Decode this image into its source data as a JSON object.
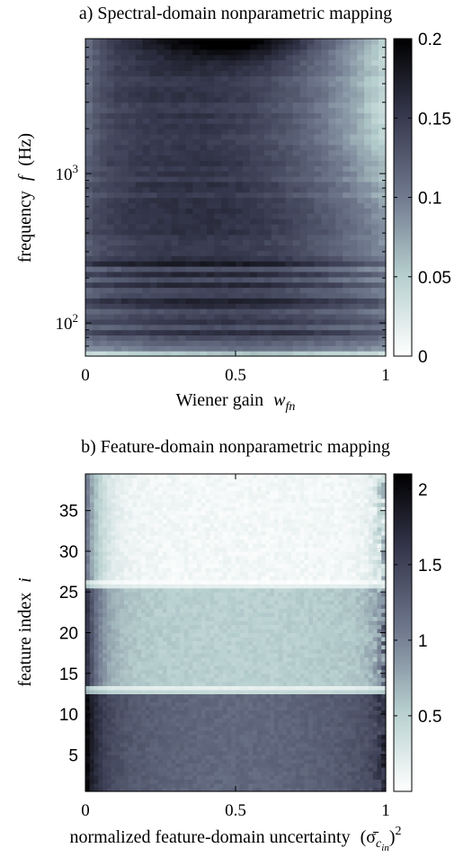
{
  "chart_data": [
    {
      "type": "heatmap",
      "title": "a) Spectral-domain nonparametric mapping",
      "xlabel": "Wiener gain",
      "xlabel_math": "w",
      "xlabel_sub": "fn",
      "ylabel": "frequency",
      "ylabel_math": "f",
      "ylabel_unit": "(Hz)",
      "xlim": [
        0,
        1
      ],
      "ylim": [
        60,
        8000
      ],
      "yscale": "log",
      "x_ticks": [
        {
          "value": 0,
          "label": "0"
        },
        {
          "value": 0.5,
          "label": "0.5"
        },
        {
          "value": 1,
          "label": "1"
        }
      ],
      "y_ticks": [
        {
          "value": 100,
          "base": "10",
          "exp": "2"
        },
        {
          "value": 1000,
          "base": "10",
          "exp": "3"
        }
      ],
      "colorbar": {
        "min": 0,
        "max": 0.2,
        "ticks": [
          {
            "value": 0,
            "label": "0"
          },
          {
            "value": 0.05,
            "label": "0.05"
          },
          {
            "value": 0.1,
            "label": "0.1"
          },
          {
            "value": 0.15,
            "label": "0.15"
          },
          {
            "value": 0.2,
            "label": "0.2"
          }
        ],
        "colormap": "gray-bone (white low, black high)"
      },
      "description": "Values mostly 0.10-0.18; near 0.19-0.20 at the top around x 0.25-0.75; lighter (0.03-0.08) toward x=1 in the upper half and near the bottom edge; light horizontal striping below ~300 Hz."
    },
    {
      "type": "heatmap",
      "title": "b) Feature-domain nonparametric mapping",
      "xlabel": "normalized feature-domain uncertainty",
      "xlabel_math": "(σ̄",
      "xlabel_sub": "c",
      "xlabel_subsub": "in",
      "xlabel_sup": "2",
      "ylabel": "feature index",
      "ylabel_math": "i",
      "xlim": [
        0,
        1
      ],
      "ylim": [
        0.5,
        39.5
      ],
      "x_ticks": [
        {
          "value": 0,
          "label": "0"
        },
        {
          "value": 0.5,
          "label": "0.5"
        },
        {
          "value": 1,
          "label": "1"
        }
      ],
      "y_ticks": [
        {
          "value": 5,
          "label": "5"
        },
        {
          "value": 10,
          "label": "10"
        },
        {
          "value": 15,
          "label": "15"
        },
        {
          "value": 20,
          "label": "20"
        },
        {
          "value": 25,
          "label": "25"
        },
        {
          "value": 30,
          "label": "30"
        },
        {
          "value": 35,
          "label": "35"
        }
      ],
      "colorbar": {
        "min": 0,
        "max": 2.1,
        "ticks": [
          {
            "value": 0.5,
            "label": "0.5"
          },
          {
            "value": 1,
            "label": "1"
          },
          {
            "value": 1.5,
            "label": "1.5"
          },
          {
            "value": 2,
            "label": "2"
          }
        ],
        "colormap": "gray-bone (white low, black high)"
      },
      "bands": [
        {
          "from": 0.5,
          "to": 12.8,
          "level_mid": 1.4,
          "level_edge": 2.1
        },
        {
          "from": 12.8,
          "to": 25.8,
          "level_mid": 0.6,
          "level_edge": 1.8
        },
        {
          "from": 25.8,
          "to": 39.5,
          "level_mid": 0.1,
          "level_edge": 1.2
        }
      ]
    }
  ]
}
